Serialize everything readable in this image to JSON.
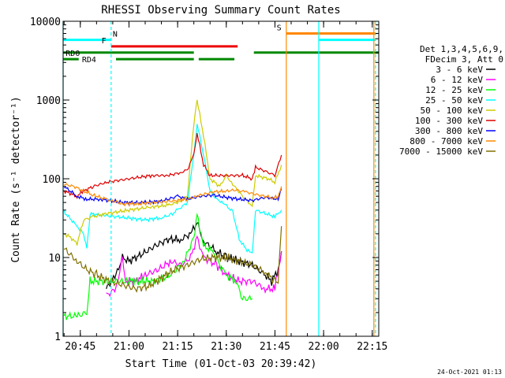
{
  "chart_data": {
    "type": "line",
    "title": "RHESSI Observing Summary Count Rates",
    "xlabel": "Start Time (01-Oct-03 20:39:42)",
    "ylabel": "Count Rate (s⁻¹ detector⁻¹)",
    "y_scale": "log",
    "ylim": [
      1,
      10000
    ],
    "xlim": [
      "20:39:42",
      "22:17:00"
    ],
    "x_ticks": [
      "20:45",
      "21:00",
      "21:15",
      "21:30",
      "21:45",
      "22:00",
      "22:15"
    ],
    "y_ticks": [
      "1",
      "10",
      "100",
      "1000",
      "10000"
    ],
    "legend_position": "right",
    "legend_header": [
      "Det 1,3,4,5,6,9,",
      "FDecim 3, Att 0"
    ],
    "timestamp": "24-Oct-2021 01:13",
    "series": [
      {
        "name": "3 - 6 keV",
        "color": "#000000",
        "points": [
          [
            "20:53",
            4
          ],
          [
            "20:56",
            6
          ],
          [
            "20:58",
            10
          ],
          [
            "21:00",
            9
          ],
          [
            "21:04",
            11
          ],
          [
            "21:08",
            14
          ],
          [
            "21:12",
            17
          ],
          [
            "21:16",
            17
          ],
          [
            "21:19",
            20
          ],
          [
            "21:21",
            28
          ],
          [
            "21:23",
            16
          ],
          [
            "21:27",
            12
          ],
          [
            "21:30",
            10
          ],
          [
            "21:34",
            9
          ],
          [
            "21:38",
            8
          ],
          [
            "21:42",
            6
          ],
          [
            "21:44",
            5
          ],
          [
            "21:46",
            7
          ],
          [
            "21:47",
            12
          ]
        ]
      },
      {
        "name": "6 - 12 keV",
        "color": "#ff00ff",
        "points": [
          [
            "20:53",
            3.3
          ],
          [
            "20:56",
            4
          ],
          [
            "20:58",
            10
          ],
          [
            "20:59",
            5
          ],
          [
            "21:02",
            5
          ],
          [
            "21:05",
            6
          ],
          [
            "21:09",
            7
          ],
          [
            "21:13",
            9
          ],
          [
            "21:16",
            8
          ],
          [
            "21:19",
            10
          ],
          [
            "21:21",
            18
          ],
          [
            "21:23",
            10
          ],
          [
            "21:27",
            8
          ],
          [
            "21:30",
            6
          ],
          [
            "21:34",
            5
          ],
          [
            "21:38",
            5
          ],
          [
            "21:42",
            4
          ],
          [
            "21:45",
            4
          ],
          [
            "21:47",
            12
          ]
        ]
      },
      {
        "name": "12 - 25 keV",
        "color": "#00ff00",
        "points": [
          [
            "20:40",
            1.8
          ],
          [
            "20:44",
            1.8
          ],
          [
            "20:47",
            2
          ],
          [
            "20:48",
            5
          ],
          [
            "21:00",
            5
          ],
          [
            "21:08",
            5
          ],
          [
            "21:13",
            6
          ],
          [
            "21:17",
            9
          ],
          [
            "21:20",
            18
          ],
          [
            "21:21",
            35
          ],
          [
            "21:23",
            14
          ],
          [
            "21:26",
            12
          ],
          [
            "21:28",
            8
          ],
          [
            "21:30",
            6
          ],
          [
            "21:33",
            5
          ],
          [
            "21:35",
            3
          ],
          [
            "21:38",
            3
          ]
        ]
      },
      {
        "name": "25 - 50 keV",
        "color": "#00ffff",
        "points": [
          [
            "20:40",
            38
          ],
          [
            "20:44",
            25
          ],
          [
            "20:46",
            20
          ],
          [
            "20:47",
            13
          ],
          [
            "20:48",
            36
          ],
          [
            "20:53",
            34
          ],
          [
            "20:59",
            32
          ],
          [
            "21:05",
            30
          ],
          [
            "21:10",
            32
          ],
          [
            "21:13",
            35
          ],
          [
            "21:15",
            40
          ],
          [
            "21:18",
            50
          ],
          [
            "21:20",
            200
          ],
          [
            "21:21",
            500
          ],
          [
            "21:23",
            200
          ],
          [
            "21:25",
            70
          ],
          [
            "21:27",
            55
          ],
          [
            "21:29",
            50
          ],
          [
            "21:32",
            38
          ],
          [
            "21:34",
            17
          ],
          [
            "21:36",
            13
          ],
          [
            "21:38",
            11
          ],
          [
            "21:39",
            40
          ],
          [
            "21:45",
            33
          ],
          [
            "21:47",
            40
          ]
        ]
      },
      {
        "name": "50 - 100 keV",
        "color": "#cccc00",
        "points": [
          [
            "20:40",
            20
          ],
          [
            "20:42",
            18
          ],
          [
            "20:44",
            15
          ],
          [
            "20:46",
            30
          ],
          [
            "20:49",
            33
          ],
          [
            "20:53",
            36
          ],
          [
            "21:00",
            40
          ],
          [
            "21:07",
            44
          ],
          [
            "21:12",
            46
          ],
          [
            "21:16",
            52
          ],
          [
            "21:18",
            60
          ],
          [
            "21:20",
            500
          ],
          [
            "21:21",
            1000
          ],
          [
            "21:23",
            350
          ],
          [
            "21:25",
            100
          ],
          [
            "21:28",
            80
          ],
          [
            "21:30",
            110
          ],
          [
            "21:32",
            85
          ],
          [
            "21:35",
            60
          ],
          [
            "21:38",
            45
          ],
          [
            "21:39",
            110
          ],
          [
            "21:43",
            100
          ],
          [
            "21:45",
            90
          ],
          [
            "21:47",
            150
          ]
        ]
      },
      {
        "name": "100 - 300 keV",
        "color": "#dd0000",
        "points": [
          [
            "20:40",
            70
          ],
          [
            "20:44",
            60
          ],
          [
            "20:46",
            70
          ],
          [
            "20:49",
            80
          ],
          [
            "20:53",
            90
          ],
          [
            "21:00",
            100
          ],
          [
            "21:07",
            110
          ],
          [
            "21:12",
            110
          ],
          [
            "21:16",
            120
          ],
          [
            "21:18",
            130
          ],
          [
            "21:20",
            200
          ],
          [
            "21:21",
            380
          ],
          [
            "21:23",
            150
          ],
          [
            "21:25",
            110
          ],
          [
            "21:30",
            110
          ],
          [
            "21:35",
            110
          ],
          [
            "21:38",
            100
          ],
          [
            "21:39",
            140
          ],
          [
            "21:43",
            120
          ],
          [
            "21:45",
            110
          ],
          [
            "21:47",
            200
          ]
        ]
      },
      {
        "name": "300 - 800 keV",
        "color": "#0000ff",
        "points": [
          [
            "20:40",
            80
          ],
          [
            "20:44",
            60
          ],
          [
            "20:47",
            55
          ],
          [
            "20:51",
            55
          ],
          [
            "20:58",
            50
          ],
          [
            "21:05",
            50
          ],
          [
            "21:10",
            52
          ],
          [
            "21:15",
            60
          ],
          [
            "21:18",
            55
          ],
          [
            "21:22",
            60
          ],
          [
            "21:26",
            62
          ],
          [
            "21:30",
            58
          ],
          [
            "21:34",
            55
          ],
          [
            "21:38",
            53
          ],
          [
            "21:42",
            58
          ],
          [
            "21:46",
            55
          ],
          [
            "21:47",
            75
          ]
        ]
      },
      {
        "name": "800 - 7000 keV",
        "color": "#ff8800",
        "points": [
          [
            "20:40",
            85
          ],
          [
            "20:43",
            80
          ],
          [
            "20:46",
            70
          ],
          [
            "20:49",
            62
          ],
          [
            "20:53",
            55
          ],
          [
            "20:58",
            48
          ],
          [
            "21:03",
            48
          ],
          [
            "21:08",
            50
          ],
          [
            "21:13",
            52
          ],
          [
            "21:18",
            55
          ],
          [
            "21:22",
            62
          ],
          [
            "21:26",
            68
          ],
          [
            "21:30",
            70
          ],
          [
            "21:33",
            72
          ],
          [
            "21:36",
            68
          ],
          [
            "21:40",
            62
          ],
          [
            "21:44",
            58
          ],
          [
            "21:46",
            58
          ],
          [
            "21:47",
            80
          ]
        ]
      },
      {
        "name": "7000 - 15000 keV",
        "color": "#807000",
        "points": [
          [
            "20:40",
            13
          ],
          [
            "20:44",
            9
          ],
          [
            "20:47",
            7
          ],
          [
            "20:50",
            6
          ],
          [
            "20:54",
            5
          ],
          [
            "20:58",
            4.5
          ],
          [
            "21:02",
            4
          ],
          [
            "21:06",
            4.3
          ],
          [
            "21:10",
            5.5
          ],
          [
            "21:14",
            7
          ],
          [
            "21:18",
            8
          ],
          [
            "21:22",
            9.5
          ],
          [
            "21:26",
            10
          ],
          [
            "21:30",
            10
          ],
          [
            "21:34",
            9
          ],
          [
            "21:38",
            8
          ],
          [
            "21:42",
            6.5
          ],
          [
            "21:45",
            5
          ],
          [
            "21:46",
            5
          ],
          [
            "21:47",
            25
          ]
        ]
      }
    ],
    "annotations": {
      "vlines": [
        {
          "time": "20:39:42",
          "color": "#00ffff",
          "dashed": false
        },
        {
          "time": "20:54:30",
          "color": "#00ffff",
          "dashed": true
        },
        {
          "time": "21:48:30",
          "color": "#ff8800",
          "dashed": false
        },
        {
          "time": "21:58:30",
          "color": "#00ffff",
          "dashed": false
        },
        {
          "time": "22:15:30",
          "color": "#ff8800",
          "dashed": false
        },
        {
          "time": "22:16:00",
          "color": "#00ffff",
          "dashed": true
        }
      ],
      "bars": [
        {
          "label": "N",
          "color": "#00ffff",
          "level": 5800,
          "segments": [
            [
              "20:39:42",
              "20:54:30"
            ],
            [
              "21:58:30",
              "22:16:00"
            ]
          ],
          "label_at": "20:55"
        },
        {
          "label": "F",
          "color": "#ee0000",
          "level": 4800,
          "segments": [
            [
              "20:54:30",
              "21:33:30"
            ]
          ],
          "label_at": "20:53"
        },
        {
          "label": "S",
          "color": "#ff8800",
          "level": 7000,
          "segments": [
            [
              "21:48:30",
              "22:16:00"
            ]
          ],
          "label_at": "21:47"
        },
        {
          "label": "RD0",
          "color": "#008800",
          "level": 4000,
          "segments": [
            [
              "20:39:42",
              "21:20:00"
            ],
            [
              "21:38:30",
              "22:17:00"
            ]
          ],
          "label_at": "20:40:30"
        },
        {
          "label": "RD4",
          "color": "#008800",
          "level": 3300,
          "segments": [
            [
              "20:39:42",
              "20:44:30"
            ],
            [
              "20:56:00",
              "21:20:00"
            ],
            [
              "21:21:30",
              "21:32:30"
            ]
          ],
          "label_at": "20:45:30"
        }
      ]
    }
  }
}
